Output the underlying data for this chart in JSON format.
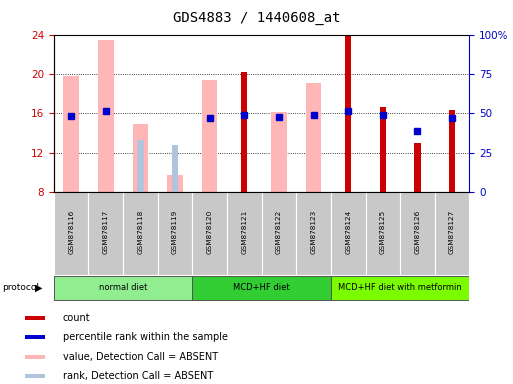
{
  "title": "GDS4883 / 1440608_at",
  "samples": [
    "GSM878116",
    "GSM878117",
    "GSM878118",
    "GSM878119",
    "GSM878120",
    "GSM878121",
    "GSM878122",
    "GSM878123",
    "GSM878124",
    "GSM878125",
    "GSM878126",
    "GSM878127"
  ],
  "count_values": [
    null,
    null,
    null,
    null,
    null,
    20.2,
    null,
    null,
    24.0,
    16.6,
    13.0,
    16.3
  ],
  "percentile_values": [
    15.7,
    16.2,
    null,
    null,
    15.5,
    15.8,
    15.6,
    15.8,
    16.2,
    15.8,
    14.2,
    15.5
  ],
  "absent_value_values": [
    19.8,
    23.4,
    14.9,
    9.7,
    19.4,
    null,
    16.1,
    19.1,
    null,
    null,
    null,
    null
  ],
  "absent_rank_values": [
    null,
    null,
    13.3,
    12.8,
    null,
    null,
    null,
    null,
    null,
    null,
    null,
    null
  ],
  "protocols": [
    {
      "label": "normal diet",
      "start": 0,
      "end": 4,
      "color": "#90ee90"
    },
    {
      "label": "MCD+HF diet",
      "start": 4,
      "end": 8,
      "color": "#32cd32"
    },
    {
      "label": "MCD+HF diet with metformin",
      "start": 8,
      "end": 12,
      "color": "#7cfc00"
    }
  ],
  "ylim": [
    8,
    24
  ],
  "yticks": [
    8,
    12,
    16,
    20,
    24
  ],
  "right_yticks_vals": [
    0,
    25,
    50,
    75,
    100
  ],
  "right_ylabels": [
    "0",
    "25",
    "50",
    "75",
    "100%"
  ],
  "count_color": "#cc0000",
  "percentile_color": "#0000cc",
  "absent_value_color": "#ffb6b6",
  "absent_rank_color": "#b0c4de",
  "axis_color_left": "#cc0000",
  "axis_color_right": "#0000cc",
  "background_color": "#ffffff",
  "sample_bg_color": "#c8c8c8",
  "legend_items": [
    {
      "color": "#cc0000",
      "label": "count"
    },
    {
      "color": "#0000cc",
      "label": "percentile rank within the sample"
    },
    {
      "color": "#ffb6b6",
      "label": "value, Detection Call = ABSENT"
    },
    {
      "color": "#b0c4de",
      "label": "rank, Detection Call = ABSENT"
    }
  ]
}
